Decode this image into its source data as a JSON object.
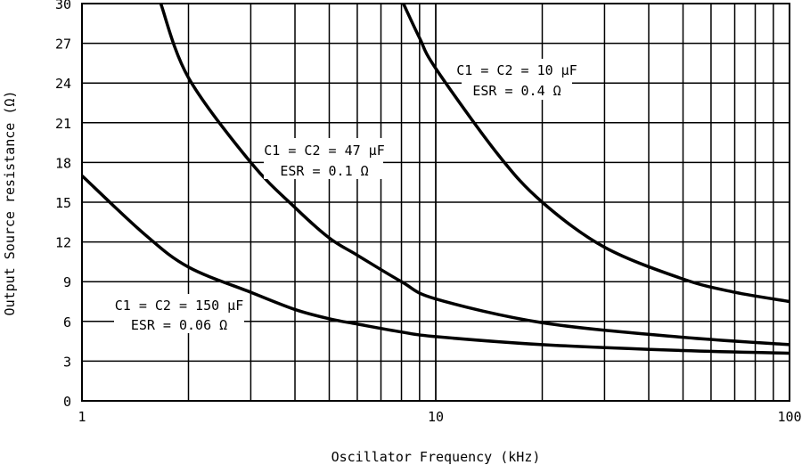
{
  "chart_data": {
    "type": "line",
    "title": "",
    "xlabel": "Oscillator Frequency (kHz)",
    "ylabel": "Output Source resistance (Ω)",
    "x_scale": "log",
    "xlim": [
      1,
      100
    ],
    "ylim": [
      0,
      30
    ],
    "grid": true,
    "x_ticks": [
      "1",
      "10",
      "100"
    ],
    "y_ticks": [
      "0",
      "3",
      "6",
      "9",
      "12",
      "15",
      "18",
      "21",
      "24",
      "27",
      "30"
    ],
    "line_color": "#000000",
    "series": [
      {
        "label_line1": "C1 = C2 = 150 µF",
        "label_line2": "ESR = 0.06 Ω",
        "x": [
          1,
          1.5,
          2,
          3,
          4,
          5,
          6,
          8,
          10,
          20,
          50,
          100
        ],
        "y": [
          17,
          12.6,
          10.1,
          8.2,
          6.9,
          6.2,
          5.8,
          5.2,
          4.85,
          4.25,
          3.8,
          3.6
        ]
      },
      {
        "label_line1": "C1 = C2 = 47 µF",
        "label_line2": "ESR = 0.1 Ω",
        "x": [
          1.67,
          2,
          3,
          4,
          5,
          6,
          8,
          10,
          20,
          50,
          100
        ],
        "y": [
          30,
          24.4,
          18,
          14.6,
          12.3,
          11,
          9.0,
          7.7,
          5.9,
          4.8,
          4.25
        ]
      },
      {
        "label_line1": "C1 = C2 = 10 µF",
        "label_line2": "ESR = 0.4 Ω",
        "x": [
          8.1,
          9,
          10,
          15,
          20,
          30,
          50,
          70,
          100
        ],
        "y": [
          30,
          27.4,
          25.1,
          18.6,
          15,
          11.6,
          9.2,
          8.2,
          7.5
        ]
      }
    ]
  }
}
